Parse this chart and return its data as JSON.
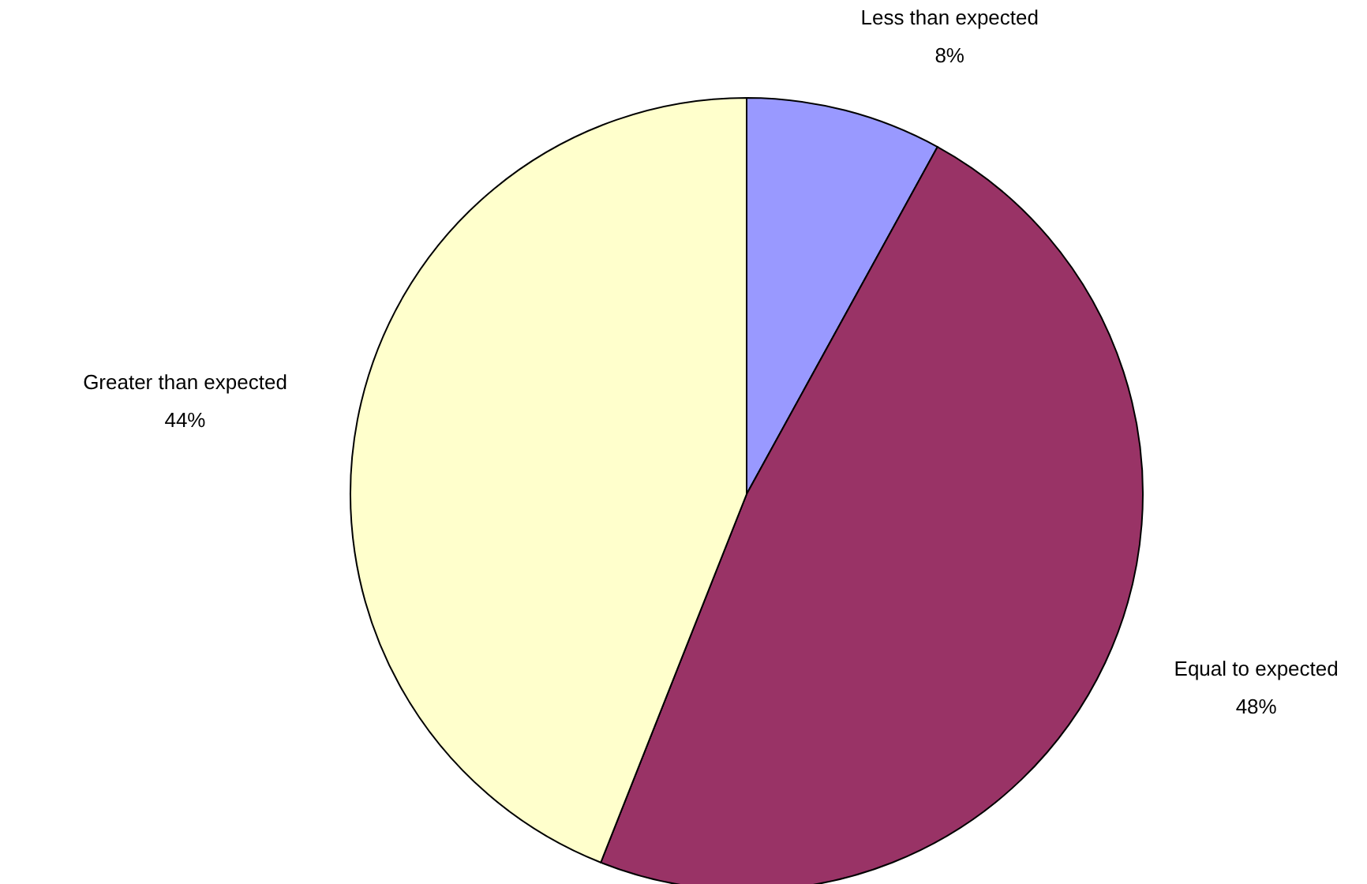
{
  "chart_data": {
    "type": "pie",
    "categories": [
      "Less than expected",
      "Equal to expected",
      "Greater than expected"
    ],
    "values": [
      8,
      48,
      44
    ],
    "value_labels": [
      "8%",
      "48%",
      "44%"
    ],
    "colors": [
      "#9999ff",
      "#993366",
      "#ffffcc"
    ]
  }
}
